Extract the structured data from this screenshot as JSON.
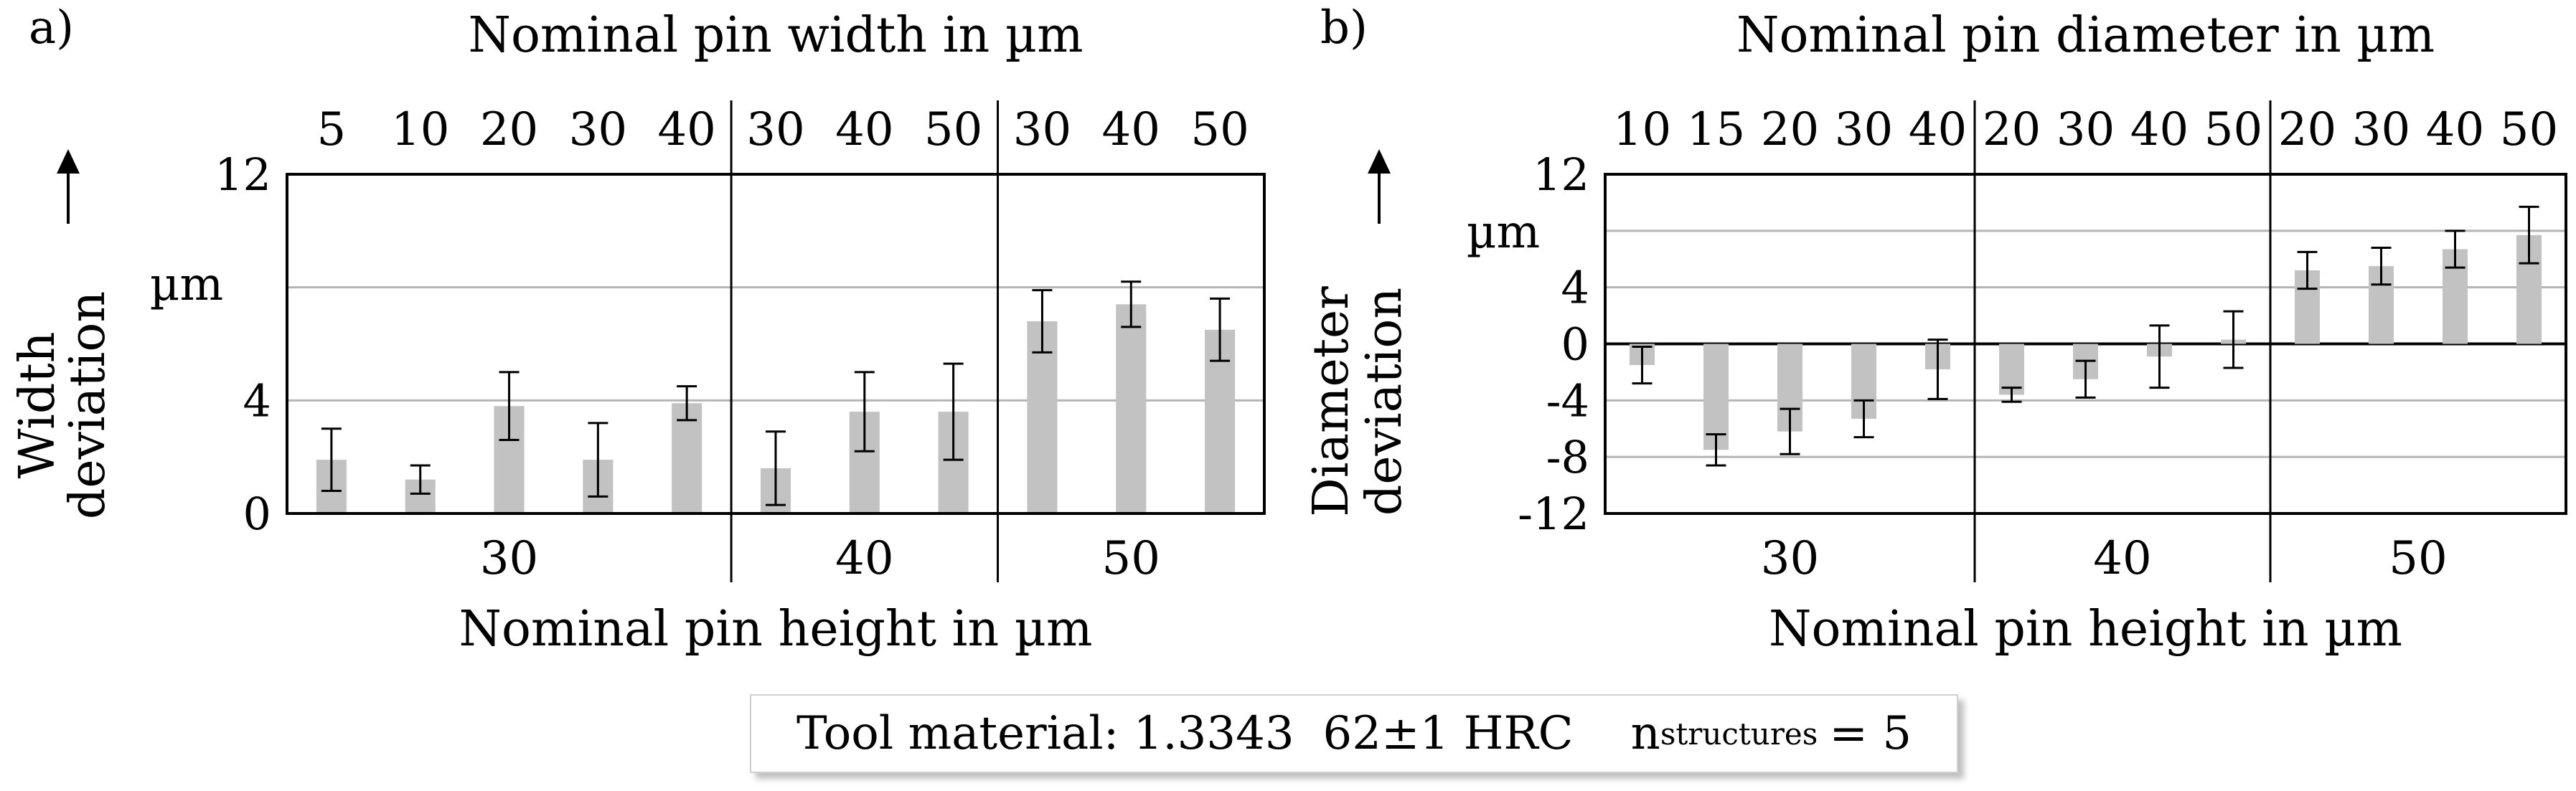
{
  "chart_data": [
    {
      "type": "bar",
      "panel_label": "a)",
      "title_top": "Nominal pin width in µm",
      "xlabel": "Nominal pin height in µm",
      "ylabel_lines": [
        "Width",
        "deviation"
      ],
      "y_unit": "µm",
      "ylim": [
        0,
        12
      ],
      "yticks": [
        0,
        4,
        8,
        12
      ],
      "ytick_labels": [
        "0",
        "4",
        "",
        "12"
      ],
      "groups": [
        {
          "label": "30",
          "categories": [
            "5",
            "10",
            "20",
            "30",
            "40"
          ],
          "values": [
            1.9,
            1.2,
            3.8,
            1.9,
            3.9
          ],
          "errors": [
            1.1,
            0.5,
            1.2,
            1.3,
            0.6
          ]
        },
        {
          "label": "40",
          "categories": [
            "30",
            "40",
            "50"
          ],
          "values": [
            1.6,
            3.6,
            3.6
          ],
          "errors": [
            1.3,
            1.4,
            1.7
          ]
        },
        {
          "label": "50",
          "categories": [
            "30",
            "40",
            "50"
          ],
          "values": [
            6.8,
            7.4,
            6.5
          ],
          "errors": [
            1.1,
            0.8,
            1.1
          ]
        }
      ]
    },
    {
      "type": "bar",
      "panel_label": "b)",
      "title_top": "Nominal pin diameter in µm",
      "xlabel": "Nominal pin height in µm",
      "ylabel_lines": [
        "Diameter",
        "deviation"
      ],
      "y_unit": "µm",
      "ylim": [
        -12,
        12
      ],
      "yticks": [
        -12,
        -8,
        -4,
        0,
        4,
        8,
        12
      ],
      "ytick_labels": [
        "-12",
        "-8",
        "-4",
        "0",
        "4",
        "",
        "12"
      ],
      "groups": [
        {
          "label": "30",
          "categories": [
            "10",
            "15",
            "20",
            "30",
            "40"
          ],
          "values": [
            -1.5,
            -7.5,
            -6.2,
            -5.3,
            -1.8
          ],
          "errors": [
            1.3,
            1.1,
            1.6,
            1.3,
            2.1
          ]
        },
        {
          "label": "40",
          "categories": [
            "20",
            "30",
            "40",
            "50"
          ],
          "values": [
            -3.6,
            -2.5,
            -0.9,
            0.3
          ],
          "errors": [
            0.5,
            1.3,
            2.2,
            2.0
          ]
        },
        {
          "label": "50",
          "categories": [
            "20",
            "30",
            "40",
            "50"
          ],
          "values": [
            5.2,
            5.5,
            6.7,
            7.7
          ],
          "errors": [
            1.3,
            1.3,
            1.3,
            2.0
          ]
        }
      ]
    }
  ],
  "footer": {
    "material_text": "Tool material: 1.3343",
    "hardness_text": "62±1 HRC",
    "n_symbol": "n",
    "n_subscript": "structures",
    "n_value": "= 5"
  },
  "colors": {
    "bar": "#c2c2c2",
    "grid": "#b5b5b5",
    "axis": "#000000"
  }
}
